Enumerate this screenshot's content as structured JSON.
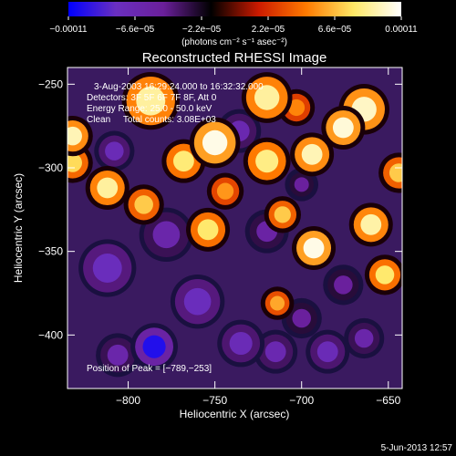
{
  "chart_data": {
    "type": "heatmap",
    "title": "Reconstructed RHESSI Image",
    "xlabel": "Heliocentric X (arcsec)",
    "ylabel": "Heliocentric Y (arcsec)",
    "xlim": [
      -835,
      -642
    ],
    "ylim": [
      -432,
      -240
    ],
    "x_ticks": [
      {
        "value": -800,
        "label": "−800"
      },
      {
        "value": -750,
        "label": "−750"
      },
      {
        "value": -700,
        "label": "−700"
      },
      {
        "value": -650,
        "label": "−650"
      }
    ],
    "y_ticks": [
      {
        "value": -250,
        "label": "−250"
      },
      {
        "value": -300,
        "label": "−300"
      },
      {
        "value": -350,
        "label": "−350"
      },
      {
        "value": -400,
        "label": "−400"
      }
    ],
    "colorbar": {
      "range": [
        -0.00011,
        0.00011
      ],
      "ticks": [
        {
          "value": -0.00011,
          "label": "−0.00011"
        },
        {
          "value": -6.6e-05,
          "label": "−6.6e−05"
        },
        {
          "value": -2.2e-05,
          "label": "−2.2e−05"
        },
        {
          "value": 2.2e-05,
          "label": "2.2e−05"
        },
        {
          "value": 6.6e-05,
          "label": "6.6e−05"
        },
        {
          "value": 0.00011,
          "label": "0.00011"
        }
      ],
      "unit_label": "(photons cm⁻² s⁻¹ asec⁻²)",
      "colors": [
        "#0000ff",
        "#6a2fc0",
        "#6a1f9a",
        "#000000",
        "#cc1a00",
        "#ff7a00",
        "#ffe866",
        "#ffffff"
      ]
    },
    "info_lines": [
      "3-Aug-2003 16:29:24.000 to 16:32:32.000",
      "Detectors: 3F 5F 6F 7F 8F, Att 0",
      "Energy Range: 25.0 - 50.0 keV",
      "Clean     Total counts: 3.08E+03"
    ],
    "peak_label": "Position of Peak = [−789,−253]",
    "peak": {
      "x": -789,
      "y": -253
    },
    "footer_date": "5-Jun-2013 12:57",
    "blobs": [
      {
        "x": -832,
        "y": -281,
        "r": 9,
        "v": 9.5e-05
      },
      {
        "x": -832,
        "y": -297,
        "r": 9,
        "v": 7.5e-05
      },
      {
        "x": -812,
        "y": -312,
        "r": 10,
        "v": 9e-05
      },
      {
        "x": -791,
        "y": -322,
        "r": 9,
        "v": 7e-05
      },
      {
        "x": -787,
        "y": -260,
        "r": 14,
        "v": 9e-05
      },
      {
        "x": -768,
        "y": -296,
        "r": 10,
        "v": 8.2e-05
      },
      {
        "x": -750,
        "y": -285,
        "r": 12,
        "v": 0.000105
      },
      {
        "x": -754,
        "y": -337,
        "r": 10,
        "v": 8e-05
      },
      {
        "x": -744,
        "y": -314,
        "r": 8,
        "v": 5.5e-05
      },
      {
        "x": -720,
        "y": -258,
        "r": 12,
        "v": 9e-05
      },
      {
        "x": -720,
        "y": -296,
        "r": 11,
        "v": 8.5e-05
      },
      {
        "x": -711,
        "y": -328,
        "r": 8,
        "v": 7e-05
      },
      {
        "x": -714,
        "y": -381,
        "r": 7,
        "v": 6e-05
      },
      {
        "x": -703,
        "y": -264,
        "r": 8,
        "v": 5e-05
      },
      {
        "x": -694,
        "y": -292,
        "r": 10,
        "v": 9.5e-05
      },
      {
        "x": -693,
        "y": -348,
        "r": 10,
        "v": 0.000105
      },
      {
        "x": -676,
        "y": -276,
        "r": 10,
        "v": 0.000102
      },
      {
        "x": -664,
        "y": -265,
        "r": 12,
        "v": 9.8e-05
      },
      {
        "x": -660,
        "y": -334,
        "r": 10,
        "v": 9.2e-05
      },
      {
        "x": -644,
        "y": -303,
        "r": 9,
        "v": 7e-05
      },
      {
        "x": -652,
        "y": -364,
        "r": 9,
        "v": 8e-05
      },
      {
        "x": -812,
        "y": -360,
        "r": 14,
        "v": -7.5e-05
      },
      {
        "x": -808,
        "y": -290,
        "r": 9,
        "v": -7e-05
      },
      {
        "x": -785,
        "y": -407,
        "r": 11,
        "v": -0.0001
      },
      {
        "x": -778,
        "y": -340,
        "r": 13,
        "v": -6e-05
      },
      {
        "x": -760,
        "y": -380,
        "r": 13,
        "v": -7.5e-05
      },
      {
        "x": -735,
        "y": -405,
        "r": 11,
        "v": -7e-05
      },
      {
        "x": -715,
        "y": -410,
        "r": 10,
        "v": -6.5e-05
      },
      {
        "x": -700,
        "y": -390,
        "r": 9,
        "v": -5e-05
      },
      {
        "x": -685,
        "y": -410,
        "r": 10,
        "v": -7e-05
      },
      {
        "x": -664,
        "y": -402,
        "r": 9,
        "v": -6e-05
      },
      {
        "x": -736,
        "y": -278,
        "r": 10,
        "v": -6.5e-05
      },
      {
        "x": -720,
        "y": -338,
        "r": 10,
        "v": -5.5e-05
      },
      {
        "x": -806,
        "y": -412,
        "r": 10,
        "v": -6e-05
      },
      {
        "x": -676,
        "y": -370,
        "r": 9,
        "v": -5e-05
      },
      {
        "x": -700,
        "y": -310,
        "r": 7,
        "v": -5e-05
      }
    ]
  }
}
